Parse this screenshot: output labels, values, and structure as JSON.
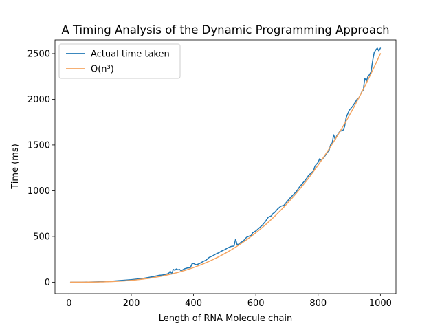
{
  "chart_data": {
    "type": "line",
    "title": "A Timing Analysis of the Dynamic Programming Approach",
    "xlabel": "Length of RNA Molecule chain",
    "ylabel": "Time (ms)",
    "xlim": [
      -45,
      1050
    ],
    "ylim": [
      -125,
      2650
    ],
    "xticks": [
      0,
      200,
      400,
      600,
      800,
      1000
    ],
    "yticks": [
      0,
      500,
      1000,
      1500,
      2000,
      2500
    ],
    "legend_position": "upper-left",
    "grid": false,
    "series": [
      {
        "name": "Actual time taken",
        "color": "#1f77b4",
        "x": [
          5,
          40,
          80,
          120,
          160,
          200,
          240,
          270,
          290,
          300,
          310,
          320,
          325,
          330,
          335,
          340,
          345,
          350,
          355,
          360,
          370,
          380,
          390,
          395,
          400,
          405,
          410,
          420,
          430,
          440,
          450,
          460,
          470,
          480,
          490,
          500,
          510,
          520,
          530,
          535,
          540,
          545,
          550,
          560,
          570,
          580,
          585,
          590,
          600,
          610,
          620,
          630,
          640,
          650,
          655,
          660,
          670,
          680,
          690,
          700,
          710,
          720,
          730,
          740,
          750,
          760,
          770,
          780,
          785,
          790,
          800,
          805,
          810,
          820,
          830,
          835,
          840,
          845,
          850,
          855,
          860,
          870,
          880,
          885,
          890,
          900,
          910,
          920,
          925,
          930,
          940,
          945,
          950,
          955,
          960,
          965,
          970,
          975,
          980,
          985,
          990,
          995,
          1000
        ],
        "y": [
          0,
          0,
          3,
          7,
          17,
          27,
          42,
          60,
          75,
          78,
          85,
          95,
          120,
          90,
          140,
          130,
          145,
          135,
          140,
          125,
          145,
          155,
          160,
          200,
          205,
          195,
          190,
          205,
          225,
          240,
          270,
          285,
          305,
          320,
          340,
          355,
          375,
          390,
          395,
          470,
          410,
          415,
          430,
          450,
          490,
          505,
          510,
          540,
          560,
          590,
          620,
          660,
          710,
          725,
          750,
          760,
          800,
          830,
          840,
          880,
          920,
          955,
          990,
          1040,
          1080,
          1120,
          1170,
          1200,
          1215,
          1270,
          1310,
          1350,
          1330,
          1370,
          1420,
          1440,
          1500,
          1520,
          1610,
          1560,
          1600,
          1650,
          1660,
          1700,
          1800,
          1880,
          1920,
          1970,
          2000,
          2010,
          2080,
          2100,
          2230,
          2200,
          2250,
          2270,
          2300,
          2420,
          2510,
          2540,
          2560,
          2530,
          2560
        ]
      },
      {
        "name": "O(n³)",
        "color": "#f4a460",
        "function": "0.0000025*x^3",
        "x_range": [
          5,
          1000
        ]
      }
    ]
  }
}
